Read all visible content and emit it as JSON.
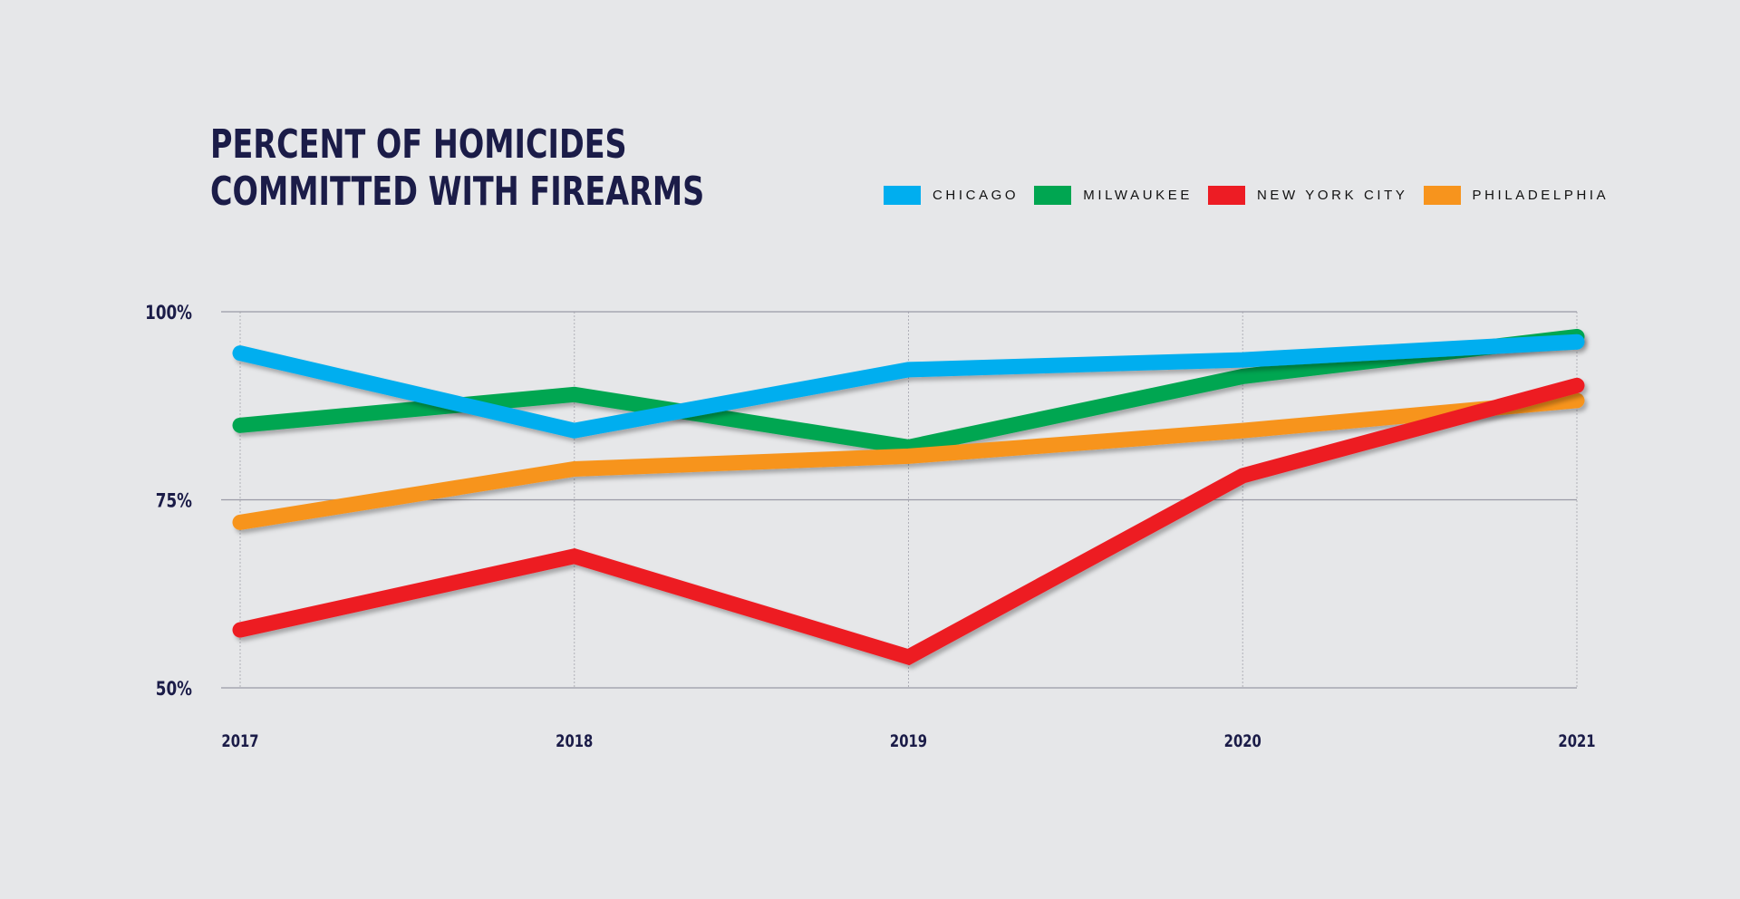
{
  "chart_data": {
    "type": "line",
    "title": "PERCENT OF HOMICIDES COMMITTED WITH FIREARMS",
    "title_lines": [
      "PERCENT OF HOMICIDES",
      "COMMITTED WITH FIREARMS"
    ],
    "xlabel": "",
    "ylabel": "",
    "categories": [
      "2017",
      "2018",
      "2019",
      "2020",
      "2021"
    ],
    "ylim": [
      50,
      100
    ],
    "yticks": [
      50,
      75,
      100
    ],
    "ytick_labels": [
      "50%",
      "75%",
      "100%"
    ],
    "grid": true,
    "legend_position": "top-right",
    "series": [
      {
        "name": "CHICAGO",
        "color": "#00aeef",
        "values": [
          94.5,
          84.2,
          92.3,
          93.6,
          96.0
        ]
      },
      {
        "name": "MILWAUKEE",
        "color": "#00a651",
        "values": [
          84.9,
          89.0,
          82.0,
          91.4,
          96.7
        ]
      },
      {
        "name": "NEW YORK CITY",
        "color": "#ed1c24",
        "values": [
          57.7,
          67.5,
          54.1,
          78.2,
          90.2
        ]
      },
      {
        "name": "PHILADELPHIA",
        "color": "#f7941d",
        "values": [
          72.0,
          79.1,
          80.8,
          84.2,
          88.2
        ]
      }
    ]
  },
  "colors": {
    "background": "#e6e7e9",
    "title": "#1b1c48",
    "gridline": "#9a9aa6"
  }
}
